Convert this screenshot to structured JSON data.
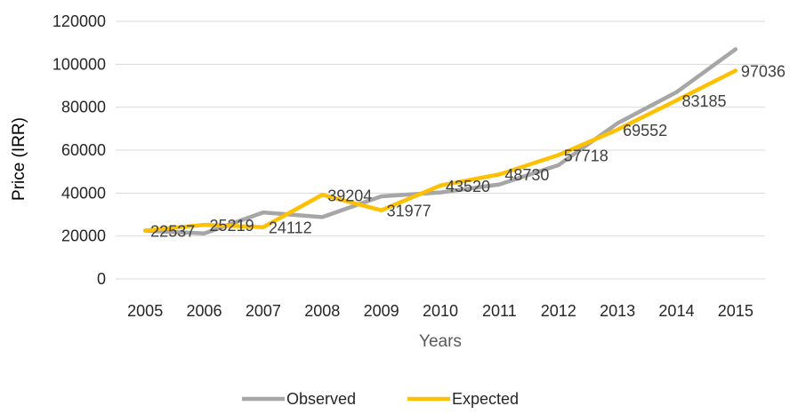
{
  "chart_data": {
    "type": "line",
    "xlabel": "Years",
    "ylabel": "Price (IRR)",
    "ylim": [
      0,
      120000
    ],
    "yticks": [
      "0",
      "20000",
      "40000",
      "60000",
      "80000",
      "100000",
      "120000"
    ],
    "categories": [
      "2005",
      "2006",
      "2007",
      "2008",
      "2009",
      "2010",
      "2011",
      "2012",
      "2013",
      "2014",
      "2015"
    ],
    "series": [
      {
        "name": "Observed",
        "color": "#a6a6a6",
        "values": [
          22500,
          21200,
          31000,
          28800,
          38500,
          40300,
          44000,
          53000,
          72500,
          87000,
          107000
        ]
      },
      {
        "name": "Expected",
        "color": "#ffc000",
        "values": [
          22537,
          25219,
          24112,
          39204,
          31977,
          43520,
          48730,
          57718,
          69552,
          83185,
          97036
        ],
        "data_labels": [
          "22537",
          "25219",
          "24112",
          "39204",
          "31977",
          "43520",
          "48730",
          "57718",
          "69552",
          "83185",
          "97036"
        ]
      }
    ],
    "grid": "horizontal",
    "legend_position": "bottom"
  }
}
